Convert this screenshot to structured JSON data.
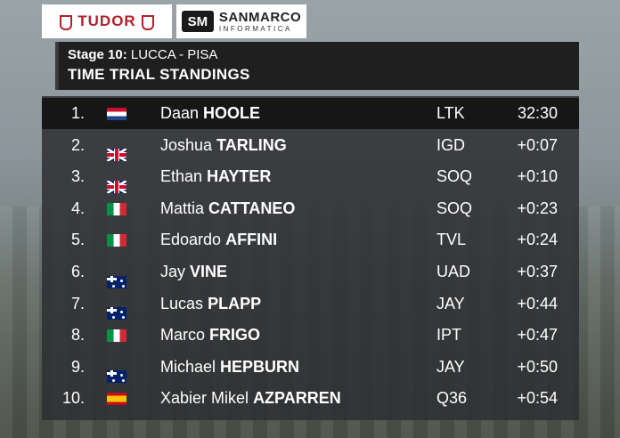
{
  "sponsors": {
    "tudor": "TUDOR",
    "sanmarco_mark": "SM",
    "sanmarco_name": "SANMARCO",
    "sanmarco_sub": "INFORMATICA"
  },
  "header": {
    "stage_label": "Stage 10:",
    "stage_route": "LUCCA - PISA",
    "title": "TIME TRIAL STANDINGS"
  },
  "standings": [
    {
      "pos": "1.",
      "flag": "flag-nl",
      "first": "Daan",
      "last": "HOOLE",
      "team": "LTK",
      "time": "32:30"
    },
    {
      "pos": "2.",
      "flag": "flag-gb",
      "first": "Joshua",
      "last": "TARLING",
      "team": "IGD",
      "time": "+0:07"
    },
    {
      "pos": "3.",
      "flag": "flag-gb",
      "first": "Ethan",
      "last": "HAYTER",
      "team": "SOQ",
      "time": "+0:10"
    },
    {
      "pos": "4.",
      "flag": "flag-it",
      "first": "Mattia",
      "last": "CATTANEO",
      "team": "SOQ",
      "time": "+0:23"
    },
    {
      "pos": "5.",
      "flag": "flag-it",
      "first": "Edoardo",
      "last": "AFFINI",
      "team": "TVL",
      "time": "+0:24"
    },
    {
      "pos": "6.",
      "flag": "flag-au",
      "first": "Jay",
      "last": "VINE",
      "team": "UAD",
      "time": "+0:37"
    },
    {
      "pos": "7.",
      "flag": "flag-au",
      "first": "Lucas",
      "last": "PLAPP",
      "team": "JAY",
      "time": "+0:44"
    },
    {
      "pos": "8.",
      "flag": "flag-it",
      "first": "Marco",
      "last": "FRIGO",
      "team": "IPT",
      "time": "+0:47"
    },
    {
      "pos": "9.",
      "flag": "flag-au",
      "first": "Michael",
      "last": "HEPBURN",
      "team": "JAY",
      "time": "+0:50"
    },
    {
      "pos": "10.",
      "flag": "flag-es",
      "first": "Xabier Mikel",
      "last": "AZPARREN",
      "team": "Q36",
      "time": "+0:54"
    }
  ]
}
